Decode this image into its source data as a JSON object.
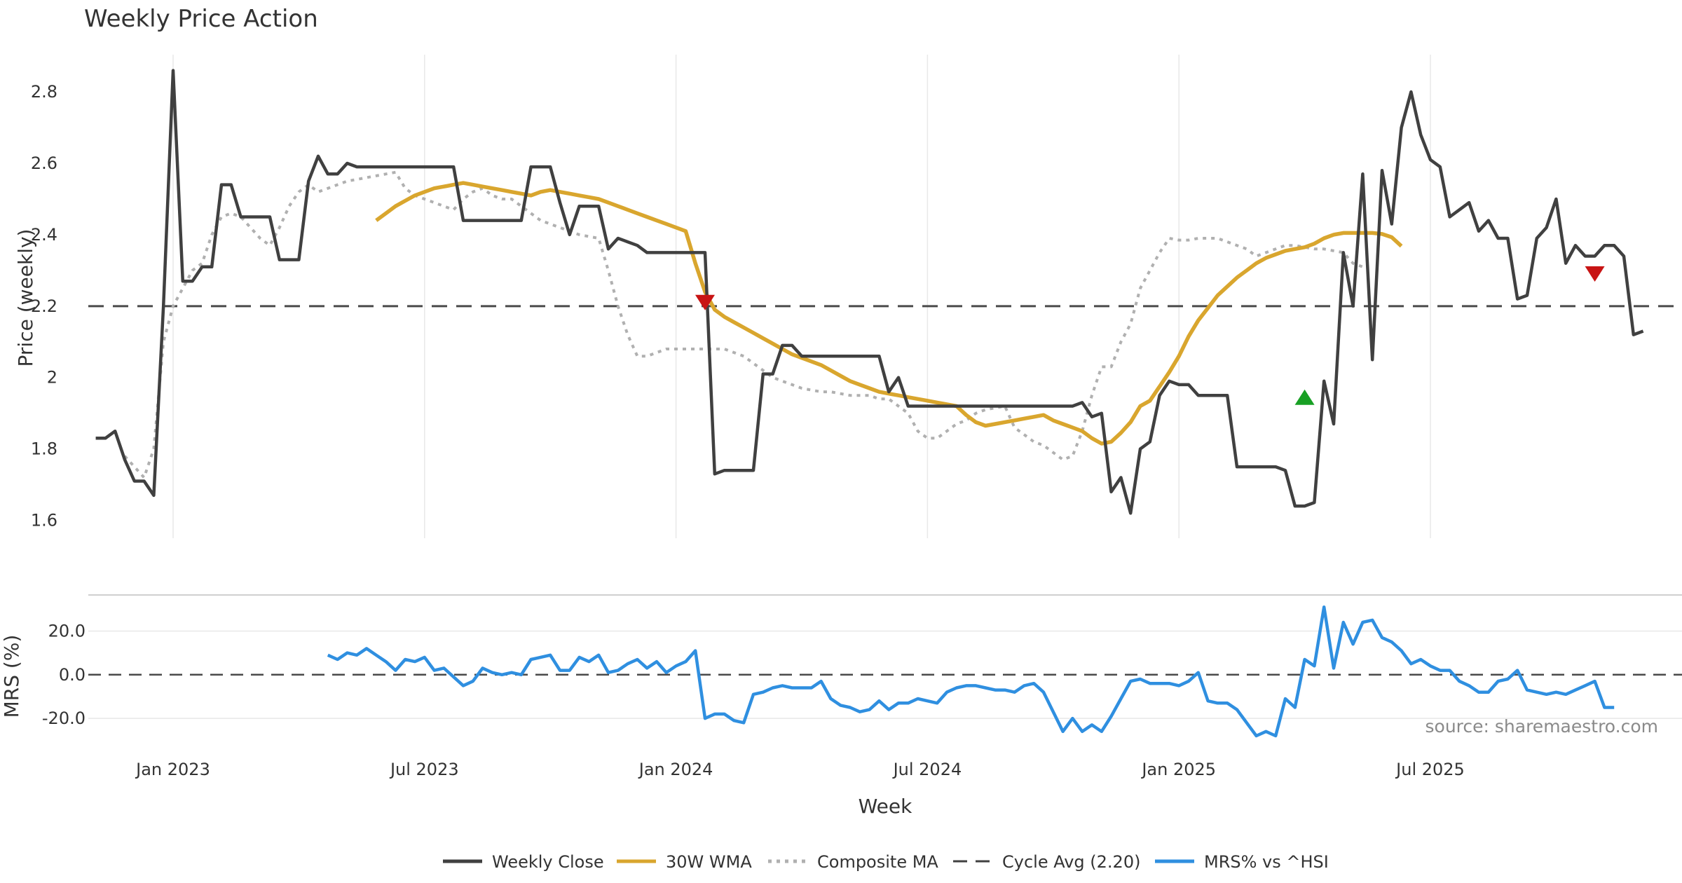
{
  "chart_data": {
    "type": "line",
    "title": "Weekly Price Action",
    "xlabel": "Week",
    "source": "source: sharemaestro.com",
    "x_ticks": [
      {
        "label": "Jan 2023",
        "week": 3
      },
      {
        "label": "Jul 2023",
        "week": 29
      },
      {
        "label": "Jan 2024",
        "week": 55
      },
      {
        "label": "Jul 2024",
        "week": 81
      },
      {
        "label": "Jan 2025",
        "week": 107
      },
      {
        "label": "Jul 2025",
        "week": 133
      }
    ],
    "price_panel": {
      "ylabel": "Price (weekly)",
      "ylim": [
        1.55,
        2.92
      ],
      "y_ticks": [
        {
          "value": 1.6,
          "label": "1.6"
        },
        {
          "value": 1.8,
          "label": "1.8"
        },
        {
          "value": 2.0,
          "label": "2"
        },
        {
          "value": 2.2,
          "label": "2.2"
        },
        {
          "value": 2.4,
          "label": "2.4"
        },
        {
          "value": 2.6,
          "label": "2.6"
        },
        {
          "value": 2.8,
          "label": "2.8"
        }
      ],
      "cycle_avg": 2.2,
      "series": [
        {
          "name": "Weekly Close",
          "color": "#404040",
          "start_week": -5,
          "values": [
            1.83,
            1.83,
            1.85,
            1.77,
            1.71,
            1.71,
            1.67,
            2.2,
            2.86,
            2.27,
            2.27,
            2.31,
            2.31,
            2.54,
            2.54,
            2.45,
            2.45,
            2.45,
            2.45,
            2.33,
            2.33,
            2.33,
            2.55,
            2.62,
            2.57,
            2.57,
            2.6,
            2.59,
            2.59,
            2.59,
            2.59,
            2.59,
            2.59,
            2.59,
            2.59,
            2.59,
            2.59,
            2.59,
            2.44,
            2.44,
            2.44,
            2.44,
            2.44,
            2.44,
            2.44,
            2.59,
            2.59,
            2.59,
            2.49,
            2.4,
            2.48,
            2.48,
            2.48,
            2.36,
            2.39,
            2.38,
            2.37,
            2.35,
            2.35,
            2.35,
            2.35,
            2.35,
            2.35,
            2.35,
            1.73,
            1.74,
            1.74,
            1.74,
            1.74,
            2.01,
            2.01,
            2.09,
            2.09,
            2.06,
            2.06,
            2.06,
            2.06,
            2.06,
            2.06,
            2.06,
            2.06,
            2.06,
            1.96,
            2.0,
            1.92,
            1.92,
            1.92,
            1.92,
            1.92,
            1.92,
            1.92,
            1.92,
            1.92,
            1.92,
            1.92,
            1.92,
            1.92,
            1.92,
            1.92,
            1.92,
            1.92,
            1.92,
            1.93,
            1.89,
            1.9,
            1.68,
            1.72,
            1.62,
            1.8,
            1.82,
            1.95,
            1.99,
            1.98,
            1.98,
            1.95,
            1.95,
            1.95,
            1.95,
            1.75,
            1.75,
            1.75,
            1.75,
            1.75,
            1.74,
            1.64,
            1.64,
            1.65,
            1.99,
            1.87,
            2.35,
            2.2,
            2.57,
            2.05,
            2.58,
            2.43,
            2.7,
            2.8,
            2.68,
            2.61,
            2.59,
            2.45,
            2.47,
            2.49,
            2.41,
            2.44,
            2.39,
            2.39,
            2.22,
            2.23,
            2.39,
            2.42,
            2.5,
            2.32,
            2.37,
            2.34,
            2.34,
            2.37,
            2.37,
            2.34,
            2.12,
            2.13
          ]
        },
        {
          "name": "30W WMA",
          "color": "#d9a62e",
          "start_week": 24,
          "values": [
            2.44,
            2.46,
            2.48,
            2.495,
            2.51,
            2.52,
            2.53,
            2.535,
            2.54,
            2.545,
            2.54,
            2.535,
            2.53,
            2.525,
            2.52,
            2.515,
            2.51,
            2.52,
            2.525,
            2.52,
            2.515,
            2.51,
            2.505,
            2.5,
            2.49,
            2.48,
            2.47,
            2.46,
            2.45,
            2.44,
            2.43,
            2.42,
            2.41,
            2.32,
            2.24,
            2.19,
            2.17,
            2.155,
            2.14,
            2.125,
            2.11,
            2.095,
            2.08,
            2.065,
            2.055,
            2.045,
            2.035,
            2.02,
            2.005,
            1.99,
            1.98,
            1.97,
            1.96,
            1.955,
            1.95,
            1.945,
            1.94,
            1.935,
            1.93,
            1.925,
            1.92,
            1.895,
            1.875,
            1.865,
            1.87,
            1.875,
            1.88,
            1.885,
            1.89,
            1.895,
            1.88,
            1.87,
            1.86,
            1.85,
            1.83,
            1.815,
            1.82,
            1.845,
            1.875,
            1.92,
            1.935,
            1.975,
            2.015,
            2.06,
            2.115,
            2.16,
            2.195,
            2.23,
            2.255,
            2.28,
            2.3,
            2.32,
            2.335,
            2.345,
            2.355,
            2.36,
            2.365,
            2.375,
            2.39,
            2.4,
            2.405,
            2.405,
            2.405,
            2.405,
            2.402,
            2.393,
            2.368
          ]
        },
        {
          "name": "Composite MA",
          "color": "#b0b0b0",
          "start_week": -2,
          "values": [
            1.78,
            1.75,
            1.72,
            1.8,
            2.1,
            2.2,
            2.25,
            2.3,
            2.32,
            2.4,
            2.45,
            2.46,
            2.45,
            2.42,
            2.39,
            2.37,
            2.42,
            2.48,
            2.52,
            2.54,
            2.52,
            2.53,
            2.54,
            2.55,
            2.555,
            2.56,
            2.565,
            2.57,
            2.575,
            2.53,
            2.51,
            2.5,
            2.49,
            2.48,
            2.47,
            2.5,
            2.52,
            2.53,
            2.51,
            2.5,
            2.5,
            2.48,
            2.46,
            2.44,
            2.43,
            2.42,
            2.41,
            2.4,
            2.395,
            2.39,
            2.3,
            2.2,
            2.12,
            2.06,
            2.06,
            2.07,
            2.08,
            2.08,
            2.08,
            2.08,
            2.08,
            2.08,
            2.08,
            2.07,
            2.06,
            2.04,
            2.02,
            2.0,
            1.99,
            1.98,
            1.97,
            1.965,
            1.96,
            1.96,
            1.955,
            1.95,
            1.95,
            1.95,
            1.94,
            1.94,
            1.92,
            1.9,
            1.85,
            1.83,
            1.83,
            1.85,
            1.87,
            1.88,
            1.9,
            1.91,
            1.915,
            1.92,
            1.86,
            1.84,
            1.82,
            1.81,
            1.79,
            1.77,
            1.78,
            1.85,
            1.95,
            2.03,
            2.03,
            2.1,
            2.15,
            2.25,
            2.3,
            2.35,
            2.39,
            2.385,
            2.385,
            2.39,
            2.39,
            2.39,
            2.38,
            2.37,
            2.36,
            2.34,
            2.35,
            2.36,
            2.37,
            2.37,
            2.365,
            2.36,
            2.36,
            2.355,
            2.35,
            2.32,
            2.31
          ]
        }
      ],
      "signals": [
        {
          "type": "sell",
          "week": 58,
          "value": 2.21,
          "color": "#c81414"
        },
        {
          "type": "buy",
          "week": 120,
          "value": 1.945,
          "color": "#18a024"
        },
        {
          "type": "sell",
          "week": 150,
          "value": 2.29,
          "color": "#c81414"
        }
      ]
    },
    "mrs_panel": {
      "ylabel": "MRS (%)",
      "ylim": [
        -28,
        33
      ],
      "y_ticks": [
        {
          "value": 20,
          "label": "20.0"
        },
        {
          "value": 0,
          "label": "0.0"
        },
        {
          "value": -20,
          "label": "-20.0"
        }
      ],
      "series": {
        "name": "MRS% vs ^HSI",
        "color": "#2f8fe0",
        "start_week": 19,
        "values": [
          9,
          7,
          10,
          9,
          12,
          9,
          6,
          2,
          7,
          6,
          8,
          2,
          3,
          -1,
          -5,
          -3,
          3,
          1,
          0,
          1,
          0,
          7,
          8,
          9,
          2,
          2,
          8,
          6,
          9,
          1,
          2,
          5,
          7,
          3,
          6,
          1,
          4,
          6,
          11,
          -20,
          -18,
          -18,
          -21,
          -22,
          -9,
          -8,
          -6,
          -5,
          -6,
          -6,
          -6,
          -3,
          -11,
          -14,
          -15,
          -17,
          -16,
          -12,
          -16,
          -13,
          -13,
          -11,
          -12,
          -13,
          -8,
          -6,
          -5,
          -5,
          -6,
          -7,
          -7,
          -8,
          -5,
          -4,
          -8,
          -17,
          -26,
          -20,
          -26,
          -23,
          -26,
          -19,
          -11,
          -3,
          -2,
          -4,
          -4,
          -4,
          -5,
          -3,
          1,
          -12,
          -13,
          -13,
          -16,
          -22,
          -28,
          -26,
          -28,
          -11,
          -15,
          7,
          4,
          31,
          3,
          24,
          14,
          24,
          25,
          17,
          15,
          11,
          5,
          7,
          4,
          2,
          2,
          -3,
          -5,
          -8,
          -8,
          -3,
          -2,
          2,
          -7,
          -8,
          -9,
          -8,
          -9,
          -7,
          -5,
          -3,
          -15,
          -15
        ]
      }
    },
    "legend": [
      {
        "label": "Weekly Close",
        "color": "#404040",
        "style": "solid"
      },
      {
        "label": "30W WMA",
        "color": "#d9a62e",
        "style": "solid"
      },
      {
        "label": "Composite MA",
        "color": "#b0b0b0",
        "style": "dotted"
      },
      {
        "label": "Cycle Avg (2.20)",
        "color": "#404040",
        "style": "dashed"
      },
      {
        "label": "MRS% vs ^HSI",
        "color": "#2f8fe0",
        "style": "solid"
      }
    ]
  }
}
